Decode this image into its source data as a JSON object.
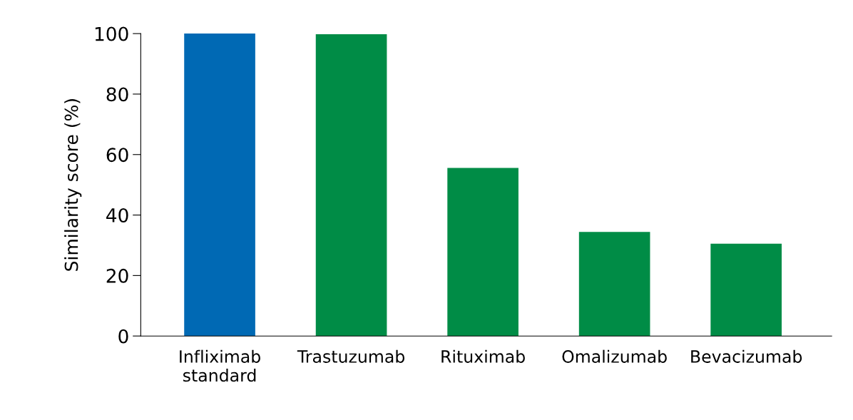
{
  "chart_data": {
    "type": "bar",
    "ylabel": "Similarity score (%)",
    "categories": [
      "Infliximab\nstandard",
      "Trastuzumab",
      "Rituximab",
      "Omalizumab",
      "Bevacizumab"
    ],
    "values": [
      100,
      99.8,
      55.6,
      34.4,
      30.5
    ],
    "colors": [
      "#0069b4",
      "#008c46",
      "#008c46",
      "#008c46",
      "#008c46"
    ],
    "ylim": [
      0,
      100
    ],
    "yticks": [
      0,
      20,
      40,
      60,
      80,
      100
    ],
    "grid": false
  }
}
